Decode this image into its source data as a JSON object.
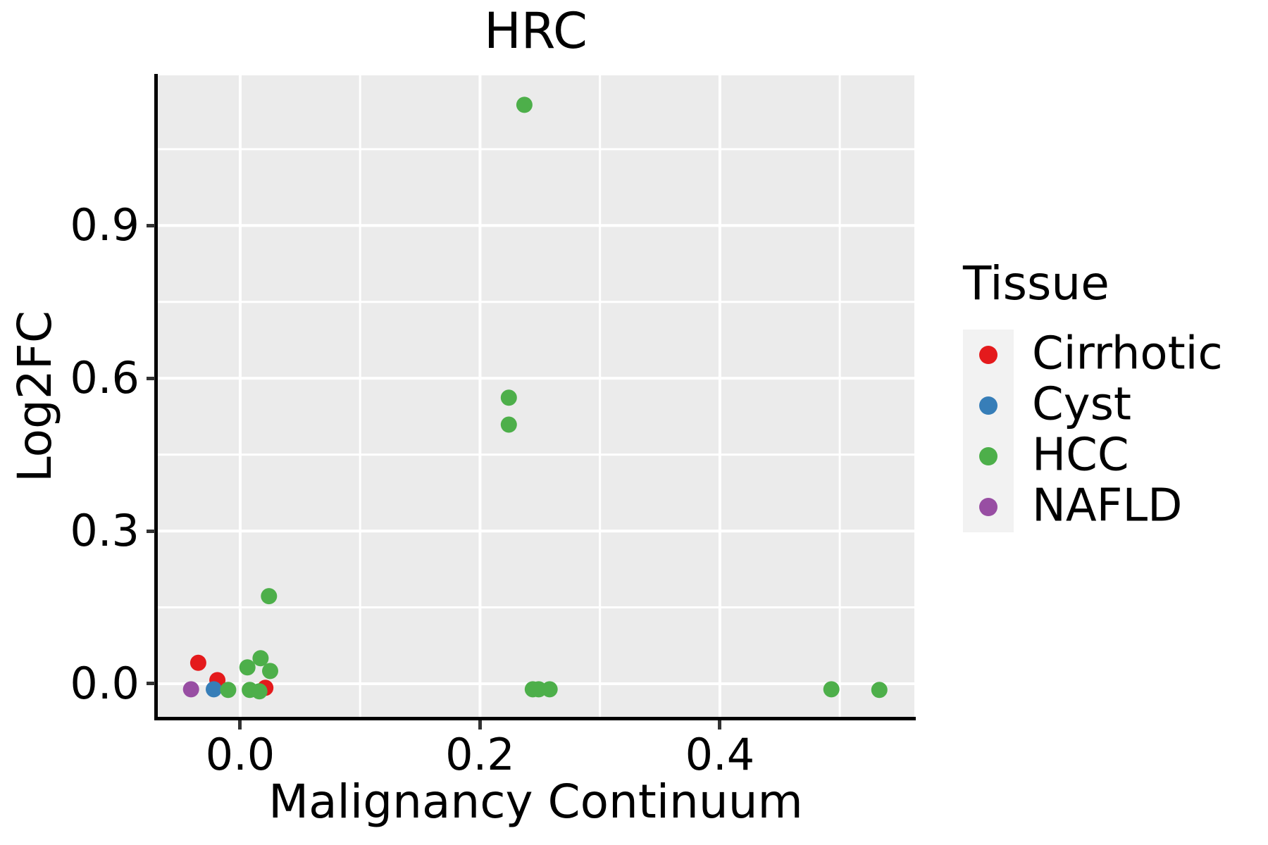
{
  "title": "HRC",
  "colors": {
    "panel_bg": "#EBEBEB",
    "grid": "#FFFFFF",
    "axis_line": "#000000",
    "tick_mark": "#333333",
    "legend_key_bg": "#F2F2F2",
    "cirrhotic": "#E41A1C",
    "cyst": "#377EB8",
    "hcc": "#4DAF4A",
    "nafld": "#984EA3"
  },
  "legend": {
    "title": "Tissue",
    "items": [
      {
        "label": "Cirrhotic",
        "color": "#E41A1C"
      },
      {
        "label": "Cyst",
        "color": "#377EB8"
      },
      {
        "label": "HCC",
        "color": "#4DAF4A"
      },
      {
        "label": "NAFLD",
        "color": "#984EA3"
      }
    ]
  },
  "chart_data": {
    "type": "scatter",
    "title": "HRC",
    "xlabel": "Malignancy Continuum",
    "ylabel": "Log2FC",
    "xlim": [
      -0.0693,
      0.5622
    ],
    "ylim": [
      -0.0678,
      1.195
    ],
    "x_ticks": [
      0.0,
      0.2,
      0.4
    ],
    "x_tick_labels": [
      "0.0",
      "0.2",
      "0.4"
    ],
    "y_ticks": [
      0.0,
      0.3,
      0.6,
      0.9
    ],
    "y_tick_labels": [
      "0.0",
      "0.3",
      "0.6",
      "0.9"
    ],
    "x_minor_gridlines": [
      0.1,
      0.3,
      0.5
    ],
    "y_minor_gridlines": [
      0.15,
      0.45,
      0.75,
      1.05
    ],
    "grid": true,
    "legend_position": "right",
    "legend_title": "Tissue",
    "series": [
      {
        "name": "Cirrhotic",
        "color": "#E41A1C",
        "points": [
          [
            -0.035,
            0.041
          ],
          [
            -0.019,
            0.007
          ],
          [
            0.021,
            -0.008
          ]
        ]
      },
      {
        "name": "Cyst",
        "color": "#377EB8",
        "points": [
          [
            -0.022,
            -0.011
          ]
        ]
      },
      {
        "name": "HCC",
        "color": "#4DAF4A",
        "points": [
          [
            0.237,
            1.137
          ],
          [
            0.224,
            0.562
          ],
          [
            0.224,
            0.509
          ],
          [
            0.024,
            0.172
          ],
          [
            0.017,
            0.05
          ],
          [
            0.006,
            0.032
          ],
          [
            0.025,
            0.025
          ],
          [
            0.008,
            -0.012
          ],
          [
            0.016,
            -0.015
          ],
          [
            -0.01,
            -0.012
          ],
          [
            0.244,
            -0.011
          ],
          [
            0.249,
            -0.011
          ],
          [
            0.258,
            -0.011
          ],
          [
            0.493,
            -0.011
          ],
          [
            0.533,
            -0.012
          ]
        ]
      },
      {
        "name": "NAFLD",
        "color": "#984EA3",
        "points": [
          [
            -0.041,
            -0.011
          ]
        ]
      }
    ]
  }
}
